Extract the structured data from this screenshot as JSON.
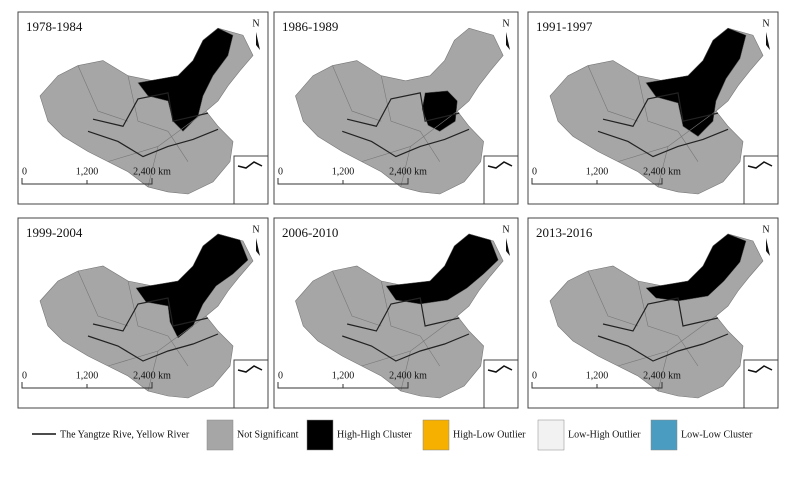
{
  "panels": [
    {
      "title": "1978-1984"
    },
    {
      "title": "1986-1989"
    },
    {
      "title": "1991-1997"
    },
    {
      "title": "1999-2004"
    },
    {
      "title": "2006-2010"
    },
    {
      "title": "2013-2016"
    }
  ],
  "north_label": "N",
  "scale_labels": [
    "0",
    "1,200",
    "2,400 km"
  ],
  "legend": {
    "river": "The Yangtze Rive, Yellow River",
    "items": [
      {
        "label": "Not Significant",
        "color": "#a6a6a6"
      },
      {
        "label": "High-High Cluster",
        "color": "#000000"
      },
      {
        "label": "High-Low Outlier",
        "color": "#f5b000"
      },
      {
        "label": "Low-High Outlier",
        "color": "#f2f2f2"
      },
      {
        "label": "Low-Low Cluster",
        "color": "#4a9cc0"
      }
    ]
  }
}
